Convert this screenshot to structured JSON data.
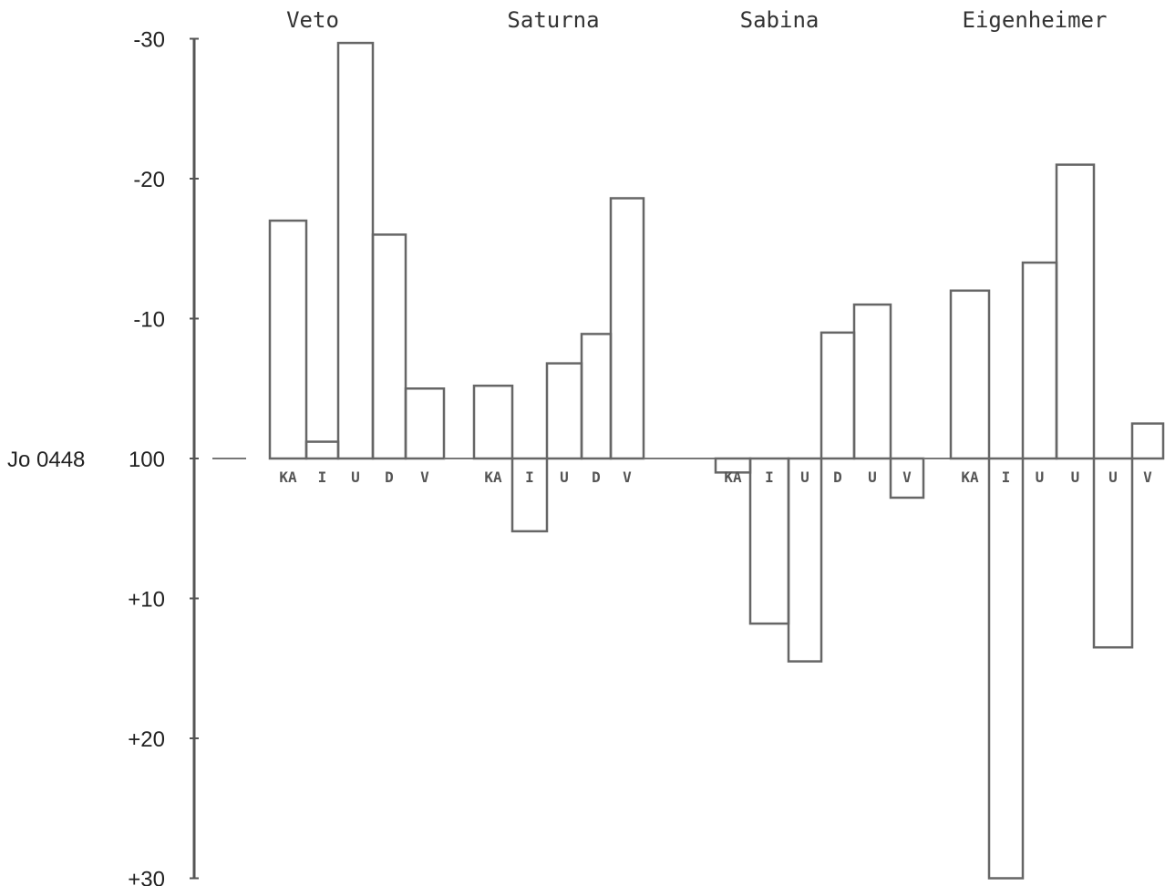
{
  "chart_data": {
    "type": "bar",
    "reference_label": "Jo 0448",
    "y_ticks": [
      "-30",
      "-20",
      "-10",
      "100",
      "+10",
      "+20",
      "+30"
    ],
    "y_tick_values": [
      -30,
      -20,
      -10,
      0,
      10,
      20,
      30
    ],
    "ylim": [
      -30,
      30
    ],
    "y_axis_inverted": true,
    "groups": [
      {
        "name": "Veto",
        "bars": [
          {
            "label": "KA",
            "value": -17
          },
          {
            "label": "I",
            "value": -1.2
          },
          {
            "label": "U",
            "value": -29.7
          },
          {
            "label": "D",
            "value": -16
          },
          {
            "label": "V",
            "value": -5
          }
        ]
      },
      {
        "name": "Saturna",
        "bars": [
          {
            "label": "KA",
            "value": -5.2
          },
          {
            "label": "I",
            "value": 5.2
          },
          {
            "label": "U",
            "value": -6.8
          },
          {
            "label": "D",
            "value": -8.9
          },
          {
            "label": "V",
            "value": -18.6
          }
        ]
      },
      {
        "name": "Sabina",
        "bars": [
          {
            "label": "KA",
            "value": 1
          },
          {
            "label": "I",
            "value": 11.8
          },
          {
            "label": "U",
            "value": 14.5
          },
          {
            "label": "D",
            "value": -9
          },
          {
            "label": "U",
            "value": -11
          },
          {
            "label": "V",
            "value": 2.8
          }
        ]
      },
      {
        "name": "Eigenheimer",
        "bars": [
          {
            "label": "KA",
            "value": -12
          },
          {
            "label": "I",
            "value": 30
          },
          {
            "label": "U",
            "value": -14
          },
          {
            "label": "U",
            "value": -21
          },
          {
            "label": "U",
            "value": 13.5
          },
          {
            "label": "V",
            "value": -2.5
          }
        ]
      }
    ]
  }
}
